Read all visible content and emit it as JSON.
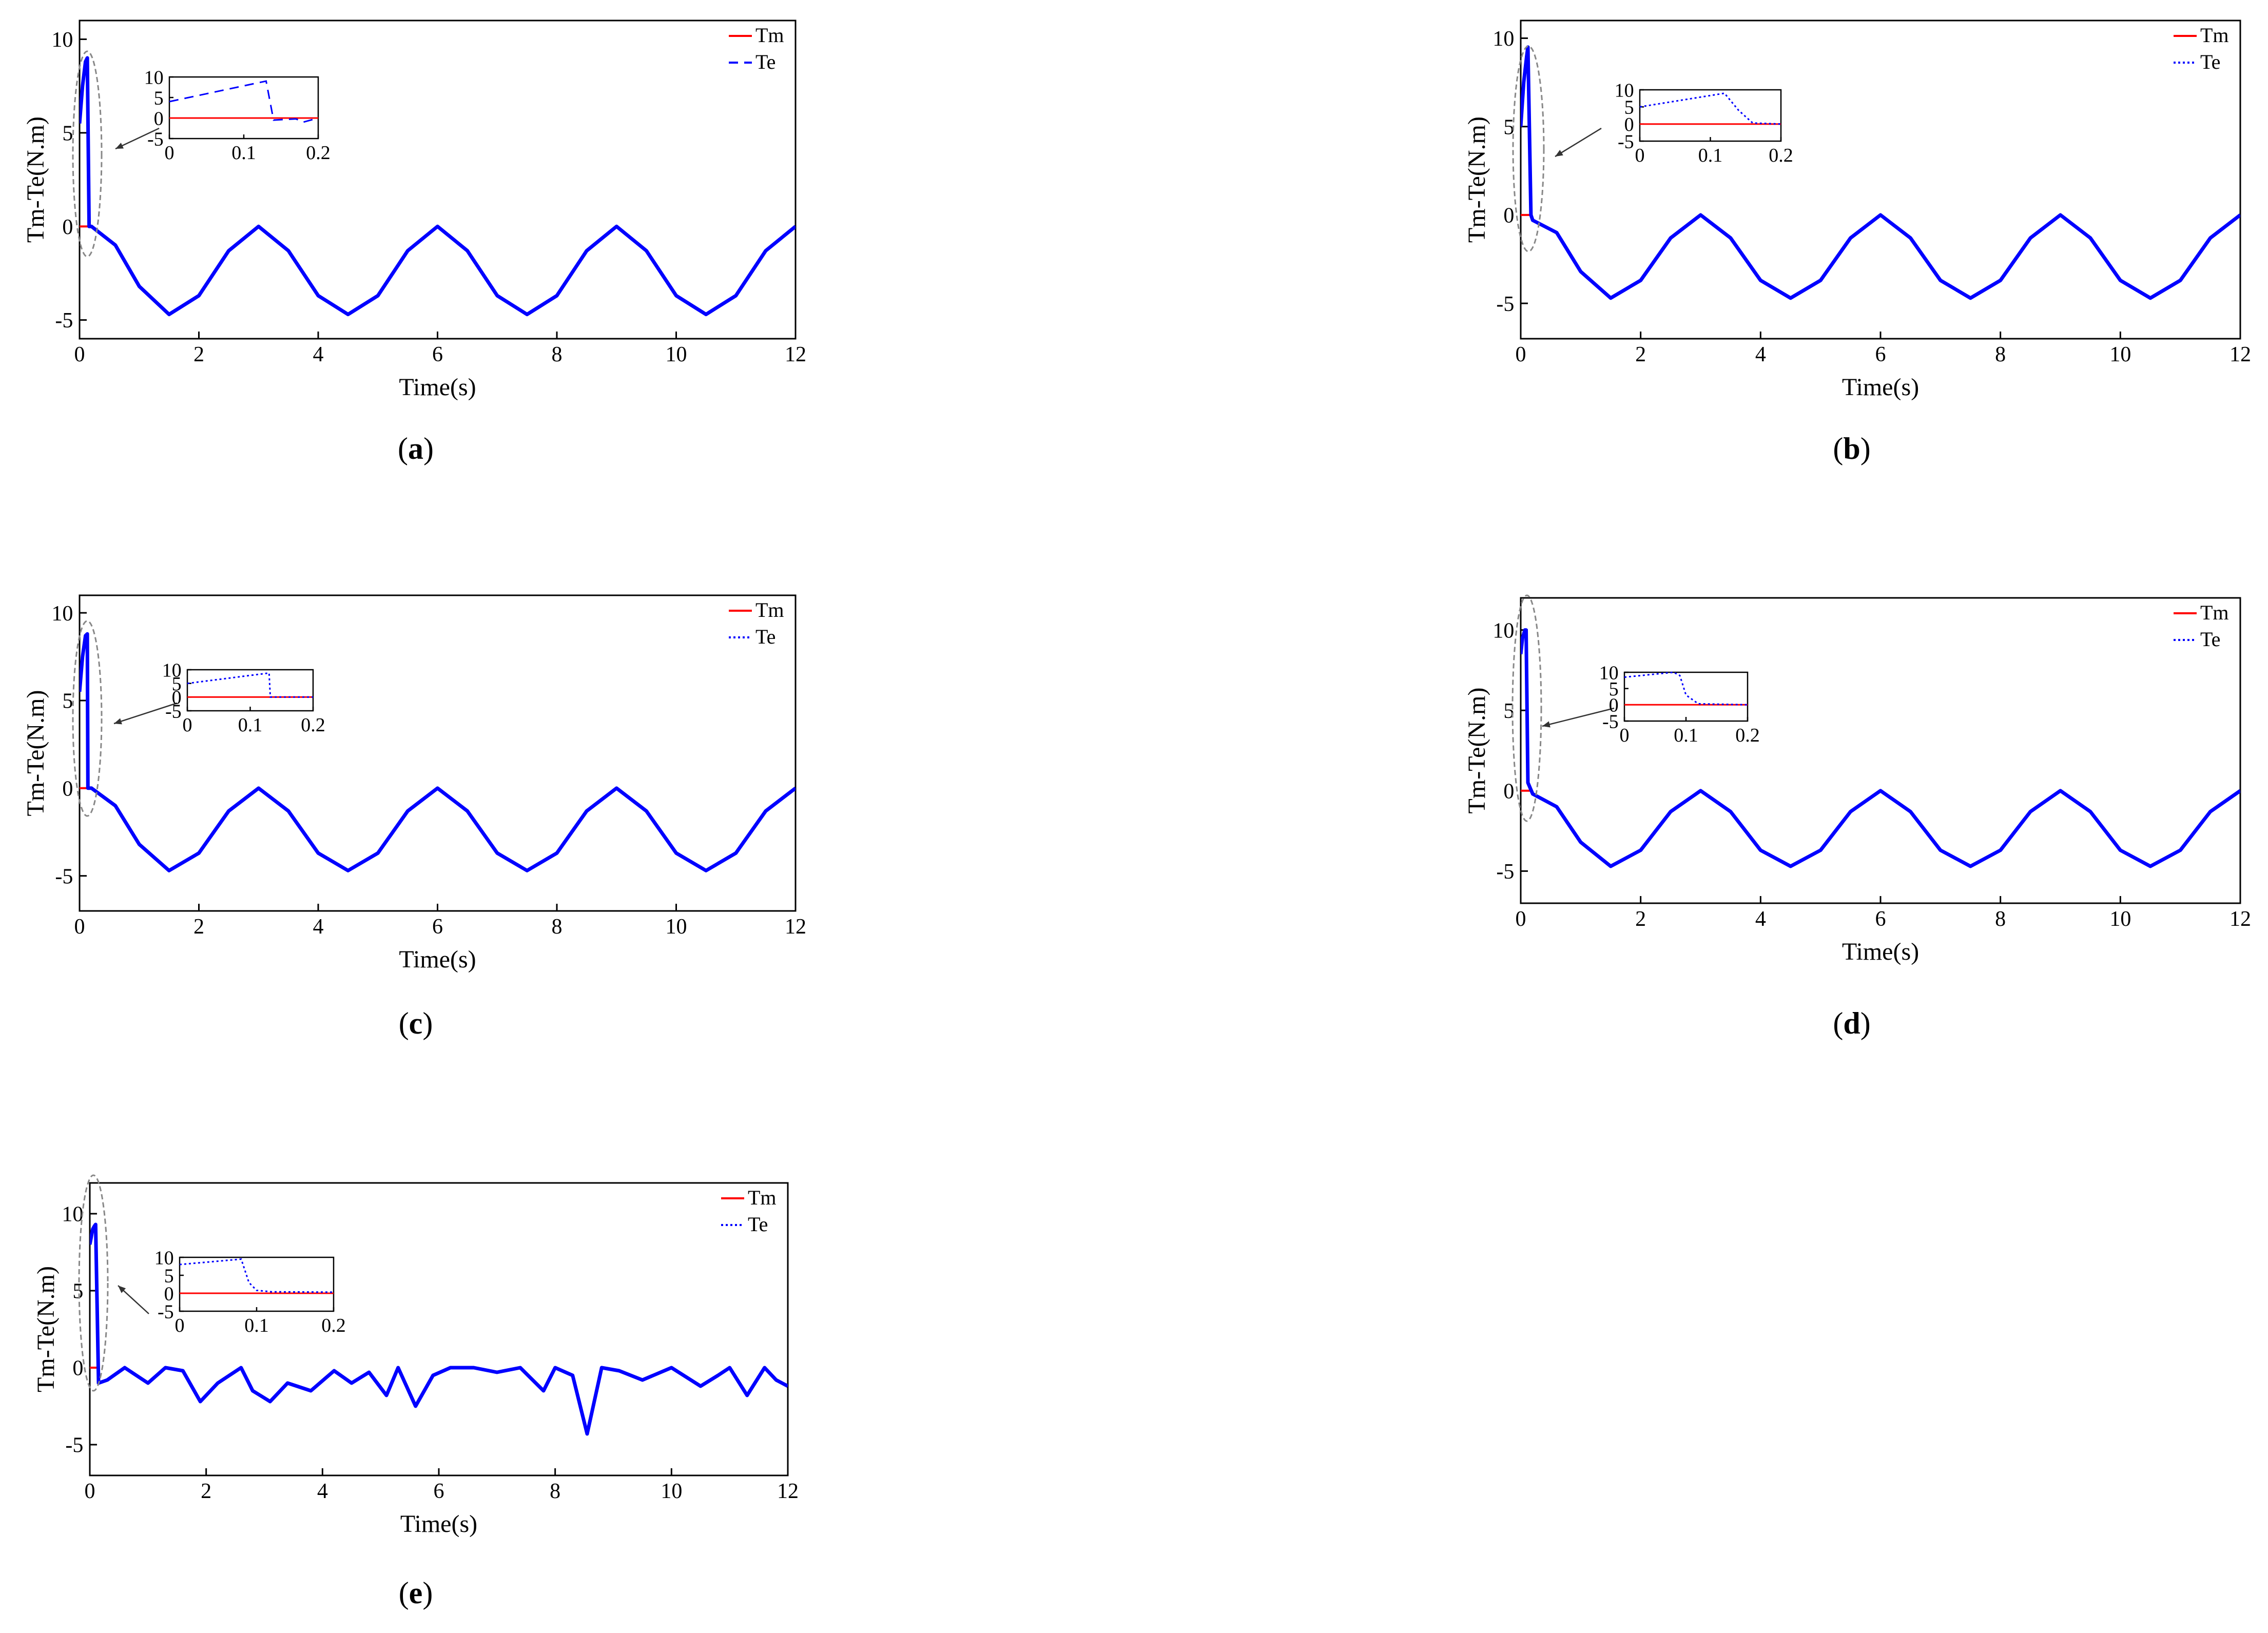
{
  "figure": {
    "panels": [
      {
        "id": "a",
        "label_letter": "a",
        "te_dash": "dashed"
      },
      {
        "id": "b",
        "label_letter": "b",
        "te_dash": "dotted"
      },
      {
        "id": "c",
        "label_letter": "c",
        "te_dash": "dotted"
      },
      {
        "id": "d",
        "label_letter": "d",
        "te_dash": "dotted"
      },
      {
        "id": "e",
        "label_letter": "e",
        "te_dash": "dotted"
      }
    ]
  },
  "colors": {
    "tm": "#ff0000",
    "te": "#0000ff",
    "axis": "#000000",
    "ellipse": "#888888"
  },
  "chart_data": [
    {
      "id": "a",
      "type": "line",
      "xlabel": "Time(s)",
      "ylabel": "Tm-Te(N.m)",
      "xlim": [
        0,
        12
      ],
      "ylim": [
        -6,
        11
      ],
      "xticks": [
        0,
        2,
        4,
        6,
        8,
        10,
        12
      ],
      "xtick_labels": [
        "0",
        "2",
        "4",
        "6",
        "8",
        "10",
        "12"
      ],
      "yticks": [
        -5,
        0,
        5,
        10
      ],
      "ytick_labels": [
        "-5",
        "0",
        "5",
        "10"
      ],
      "legend": {
        "position": "top-right",
        "entries": [
          "Tm",
          "Te"
        ]
      },
      "series": [
        {
          "name": "Tm",
          "x": [
            0,
            0.15
          ],
          "y": [
            0,
            0
          ]
        },
        {
          "name": "Te",
          "x": [
            0,
            0.05,
            0.1,
            0.13,
            0.16,
            0.2,
            0.6,
            1.0,
            1.5,
            2.0,
            2.5,
            3.0,
            3.5,
            4.0,
            4.5,
            5.0,
            5.5,
            6.0,
            6.5,
            7.0,
            7.5,
            8.0,
            8.5,
            9.0,
            9.5,
            10.0,
            10.5,
            11.0,
            11.5,
            12.0
          ],
          "y": [
            5.5,
            7.5,
            8.8,
            9.0,
            0.0,
            0.0,
            -1.0,
            -3.2,
            -4.7,
            -3.7,
            -1.3,
            0,
            -1.3,
            -3.7,
            -4.7,
            -3.7,
            -1.3,
            0,
            -1.3,
            -3.7,
            -4.7,
            -3.7,
            -1.3,
            0,
            -1.3,
            -3.7,
            -4.7,
            -3.7,
            -1.3,
            0
          ]
        }
      ],
      "inset": {
        "xlim": [
          0,
          0.2
        ],
        "ylim": [
          -5,
          10
        ],
        "xticks": [
          0,
          0.1,
          0.2
        ],
        "xtick_labels": [
          "0",
          "0.1",
          "0.2"
        ],
        "yticks": [
          -5,
          0,
          5,
          10
        ],
        "ytick_labels": [
          "-5",
          "0",
          "5",
          "10"
        ],
        "series": [
          {
            "name": "Tm",
            "x": [
              0,
              0.2
            ],
            "y": [
              0,
              0
            ]
          },
          {
            "name": "Te",
            "x": [
              0,
              0.13,
              0.14,
              0.17,
              0.18,
              0.2
            ],
            "y": [
              4,
              9.0,
              -0.5,
              -0.2,
              -1.0,
              0
            ]
          }
        ]
      }
    },
    {
      "id": "b",
      "type": "line",
      "xlabel": "Time(s)",
      "ylabel": "Tm-Te(N.m)",
      "xlim": [
        0,
        12
      ],
      "ylim": [
        -7,
        11
      ],
      "xticks": [
        0,
        2,
        4,
        6,
        8,
        10,
        12
      ],
      "xtick_labels": [
        "0",
        "2",
        "4",
        "6",
        "8",
        "10",
        "12"
      ],
      "yticks": [
        -5,
        0,
        5,
        10
      ],
      "ytick_labels": [
        "-5",
        "0",
        "5",
        "10"
      ],
      "legend": {
        "position": "top-right",
        "entries": [
          "Tm",
          "Te"
        ]
      },
      "series": [
        {
          "name": "Tm",
          "x": [
            0,
            0.15
          ],
          "y": [
            0,
            0
          ]
        },
        {
          "name": "Te",
          "x": [
            0,
            0.05,
            0.1,
            0.12,
            0.17,
            0.2,
            0.6,
            1.0,
            1.5,
            2.0,
            2.5,
            3.0,
            3.5,
            4.0,
            4.5,
            5.0,
            5.5,
            6.0,
            6.5,
            7.0,
            7.5,
            8.0,
            8.5,
            9.0,
            9.5,
            10.0,
            10.5,
            11.0,
            11.5,
            12.0
          ],
          "y": [
            5.0,
            7.5,
            9.0,
            9.5,
            0.0,
            -0.3,
            -1.0,
            -3.2,
            -4.7,
            -3.7,
            -1.3,
            0,
            -1.3,
            -3.7,
            -4.7,
            -3.7,
            -1.3,
            0,
            -1.3,
            -3.7,
            -4.7,
            -3.7,
            -1.3,
            0,
            -1.3,
            -3.7,
            -4.7,
            -3.7,
            -1.3,
            0
          ]
        }
      ],
      "inset": {
        "xlim": [
          0,
          0.2
        ],
        "ylim": [
          -5,
          10
        ],
        "xticks": [
          0,
          0.1,
          0.2
        ],
        "xtick_labels": [
          "0",
          "0.1",
          "0.2"
        ],
        "yticks": [
          -5,
          0,
          5,
          10
        ],
        "ytick_labels": [
          "-5",
          "0",
          "5",
          "10"
        ],
        "series": [
          {
            "name": "Tm",
            "x": [
              0,
              0.2
            ],
            "y": [
              0,
              0
            ]
          },
          {
            "name": "Te",
            "x": [
              0,
              0.12,
              0.14,
              0.16,
              0.2
            ],
            "y": [
              5,
              9.0,
              4.0,
              0.3,
              0
            ]
          }
        ]
      }
    },
    {
      "id": "c",
      "type": "line",
      "xlabel": "Time(s)",
      "ylabel": "Tm-Te(N.m)",
      "xlim": [
        0,
        12
      ],
      "ylim": [
        -7,
        11
      ],
      "xticks": [
        0,
        2,
        4,
        6,
        8,
        10,
        12
      ],
      "xtick_labels": [
        "0",
        "2",
        "4",
        "6",
        "8",
        "10",
        "12"
      ],
      "yticks": [
        -5,
        0,
        5,
        10
      ],
      "ytick_labels": [
        "-5",
        "0",
        "5",
        "10"
      ],
      "legend": {
        "position": "top-right",
        "entries": [
          "Tm",
          "Te"
        ]
      },
      "series": [
        {
          "name": "Tm",
          "x": [
            0,
            0.15
          ],
          "y": [
            0,
            0
          ]
        },
        {
          "name": "Te",
          "x": [
            0,
            0.05,
            0.1,
            0.13,
            0.14,
            0.2,
            0.6,
            1.0,
            1.5,
            2.0,
            2.5,
            3.0,
            3.5,
            4.0,
            4.5,
            5.0,
            5.5,
            6.0,
            6.5,
            7.0,
            7.5,
            8.0,
            8.5,
            9.0,
            9.5,
            10.0,
            10.5,
            11.0,
            11.5,
            12.0
          ],
          "y": [
            5.5,
            7.5,
            8.7,
            8.8,
            0.0,
            0.0,
            -1.0,
            -3.2,
            -4.7,
            -3.7,
            -1.3,
            0,
            -1.3,
            -3.7,
            -4.7,
            -3.7,
            -1.3,
            0,
            -1.3,
            -3.7,
            -4.7,
            -3.7,
            -1.3,
            0,
            -1.3,
            -3.7,
            -4.7,
            -3.7,
            -1.3,
            0
          ]
        }
      ],
      "inset": {
        "xlim": [
          0,
          0.2
        ],
        "ylim": [
          -5,
          10
        ],
        "xticks": [
          0,
          0.1,
          0.2
        ],
        "xtick_labels": [
          "0",
          "0.1",
          "0.2"
        ],
        "yticks": [
          -5,
          0,
          5,
          10
        ],
        "ytick_labels": [
          "-5",
          "0",
          "5",
          "10"
        ],
        "series": [
          {
            "name": "Tm",
            "x": [
              0,
              0.2
            ],
            "y": [
              0,
              0
            ]
          },
          {
            "name": "Te",
            "x": [
              0,
              0.13,
              0.132,
              0.2
            ],
            "y": [
              5,
              8.8,
              0,
              0
            ]
          }
        ]
      }
    },
    {
      "id": "d",
      "type": "line",
      "xlabel": "Time(s)",
      "ylabel": "Tm-Te(N.m)",
      "xlim": [
        0,
        12
      ],
      "ylim": [
        -7,
        12
      ],
      "xticks": [
        0,
        2,
        4,
        6,
        8,
        10,
        12
      ],
      "xtick_labels": [
        "0",
        "2",
        "4",
        "6",
        "8",
        "10",
        "12"
      ],
      "yticks": [
        -5,
        0,
        5,
        10
      ],
      "ytick_labels": [
        "-5",
        "0",
        "5",
        "10"
      ],
      "legend": {
        "position": "top-right",
        "entries": [
          "Tm",
          "Te"
        ]
      },
      "series": [
        {
          "name": "Tm",
          "x": [
            0,
            0.15
          ],
          "y": [
            0,
            0
          ]
        },
        {
          "name": "Te",
          "x": [
            0,
            0.03,
            0.07,
            0.09,
            0.12,
            0.2,
            0.6,
            1.0,
            1.5,
            2.0,
            2.5,
            3.0,
            3.5,
            4.0,
            4.5,
            5.0,
            5.5,
            6.0,
            6.5,
            7.0,
            7.5,
            8.0,
            8.5,
            9.0,
            9.5,
            10.0,
            10.5,
            11.0,
            11.5,
            12.0
          ],
          "y": [
            8.5,
            9.5,
            10.0,
            10.0,
            0.5,
            -0.2,
            -1.0,
            -3.2,
            -4.7,
            -3.7,
            -1.3,
            0,
            -1.3,
            -3.7,
            -4.7,
            -3.7,
            -1.3,
            0,
            -1.3,
            -3.7,
            -4.7,
            -3.7,
            -1.3,
            0,
            -1.3,
            -3.7,
            -4.7,
            -3.7,
            -1.3,
            0
          ]
        }
      ],
      "inset": {
        "xlim": [
          0,
          0.2
        ],
        "ylim": [
          -5,
          10
        ],
        "xticks": [
          0,
          0.1,
          0.2
        ],
        "xtick_labels": [
          "0",
          "0.1",
          "0.2"
        ],
        "yticks": [
          -5,
          0,
          5,
          10
        ],
        "ytick_labels": [
          "-5",
          "0",
          "5",
          "10"
        ],
        "series": [
          {
            "name": "Tm",
            "x": [
              0,
              0.2
            ],
            "y": [
              0,
              0
            ]
          },
          {
            "name": "Te",
            "x": [
              0,
              0.08,
              0.09,
              0.1,
              0.12,
              0.2
            ],
            "y": [
              8.5,
              10,
              9.0,
              3.0,
              0.3,
              0
            ]
          }
        ]
      }
    },
    {
      "id": "e",
      "type": "line",
      "xlabel": "Time(s)",
      "ylabel": "Tm-Te(N.m)",
      "xlim": [
        0,
        12
      ],
      "ylim": [
        -7,
        12
      ],
      "xticks": [
        0,
        2,
        4,
        6,
        8,
        10,
        12
      ],
      "xtick_labels": [
        "0",
        "2",
        "4",
        "6",
        "8",
        "10",
        "12"
      ],
      "yticks": [
        -5,
        0,
        5,
        10
      ],
      "ytick_labels": [
        "-5",
        "0",
        "5",
        "10"
      ],
      "legend": {
        "position": "top-right",
        "entries": [
          "Tm",
          "Te"
        ]
      },
      "series": [
        {
          "name": "Tm",
          "x": [
            0,
            0.15
          ],
          "y": [
            0,
            0
          ]
        },
        {
          "name": "Te",
          "x": [
            0,
            0.05,
            0.08,
            0.1,
            0.15,
            0.3,
            0.6,
            1.0,
            1.3,
            1.6,
            1.9,
            2.2,
            2.6,
            2.8,
            3.1,
            3.4,
            3.8,
            4.2,
            4.5,
            4.8,
            5.1,
            5.3,
            5.6,
            5.9,
            6.2,
            6.6,
            7.0,
            7.4,
            7.8,
            8.0,
            8.3,
            8.55,
            8.8,
            9.1,
            9.5,
            10.0,
            10.5,
            10.8,
            11.0,
            11.3,
            11.6,
            11.8,
            12.0
          ],
          "y": [
            8.0,
            9.0,
            9.2,
            9.3,
            -1.0,
            -0.8,
            0,
            -1.0,
            0,
            -0.2,
            -2.2,
            -1.0,
            0,
            -1.5,
            -2.2,
            -1.0,
            -1.5,
            -0.2,
            -1.0,
            -0.3,
            -1.8,
            0,
            -2.5,
            -0.5,
            0,
            0,
            -0.3,
            0,
            -1.5,
            0,
            -0.5,
            -4.3,
            0,
            -0.2,
            -0.8,
            0,
            -1.2,
            -0.5,
            0,
            -1.8,
            0,
            -0.8,
            -1.2
          ]
        }
      ],
      "inset": {
        "xlim": [
          0,
          0.2
        ],
        "ylim": [
          -5,
          10
        ],
        "xticks": [
          0,
          0.1,
          0.2
        ],
        "xtick_labels": [
          "0",
          "0.1",
          "0.2"
        ],
        "yticks": [
          -5,
          0,
          5,
          10
        ],
        "ytick_labels": [
          "-5",
          "0",
          "5",
          "10"
        ],
        "series": [
          {
            "name": "Tm",
            "x": [
              0,
              0.2
            ],
            "y": [
              0,
              0
            ]
          },
          {
            "name": "Te",
            "x": [
              0,
              0.08,
              0.09,
              0.1,
              0.12,
              0.2
            ],
            "y": [
              8.0,
              9.5,
              3.0,
              0.8,
              0.4,
              0.3
            ]
          }
        ]
      }
    }
  ]
}
